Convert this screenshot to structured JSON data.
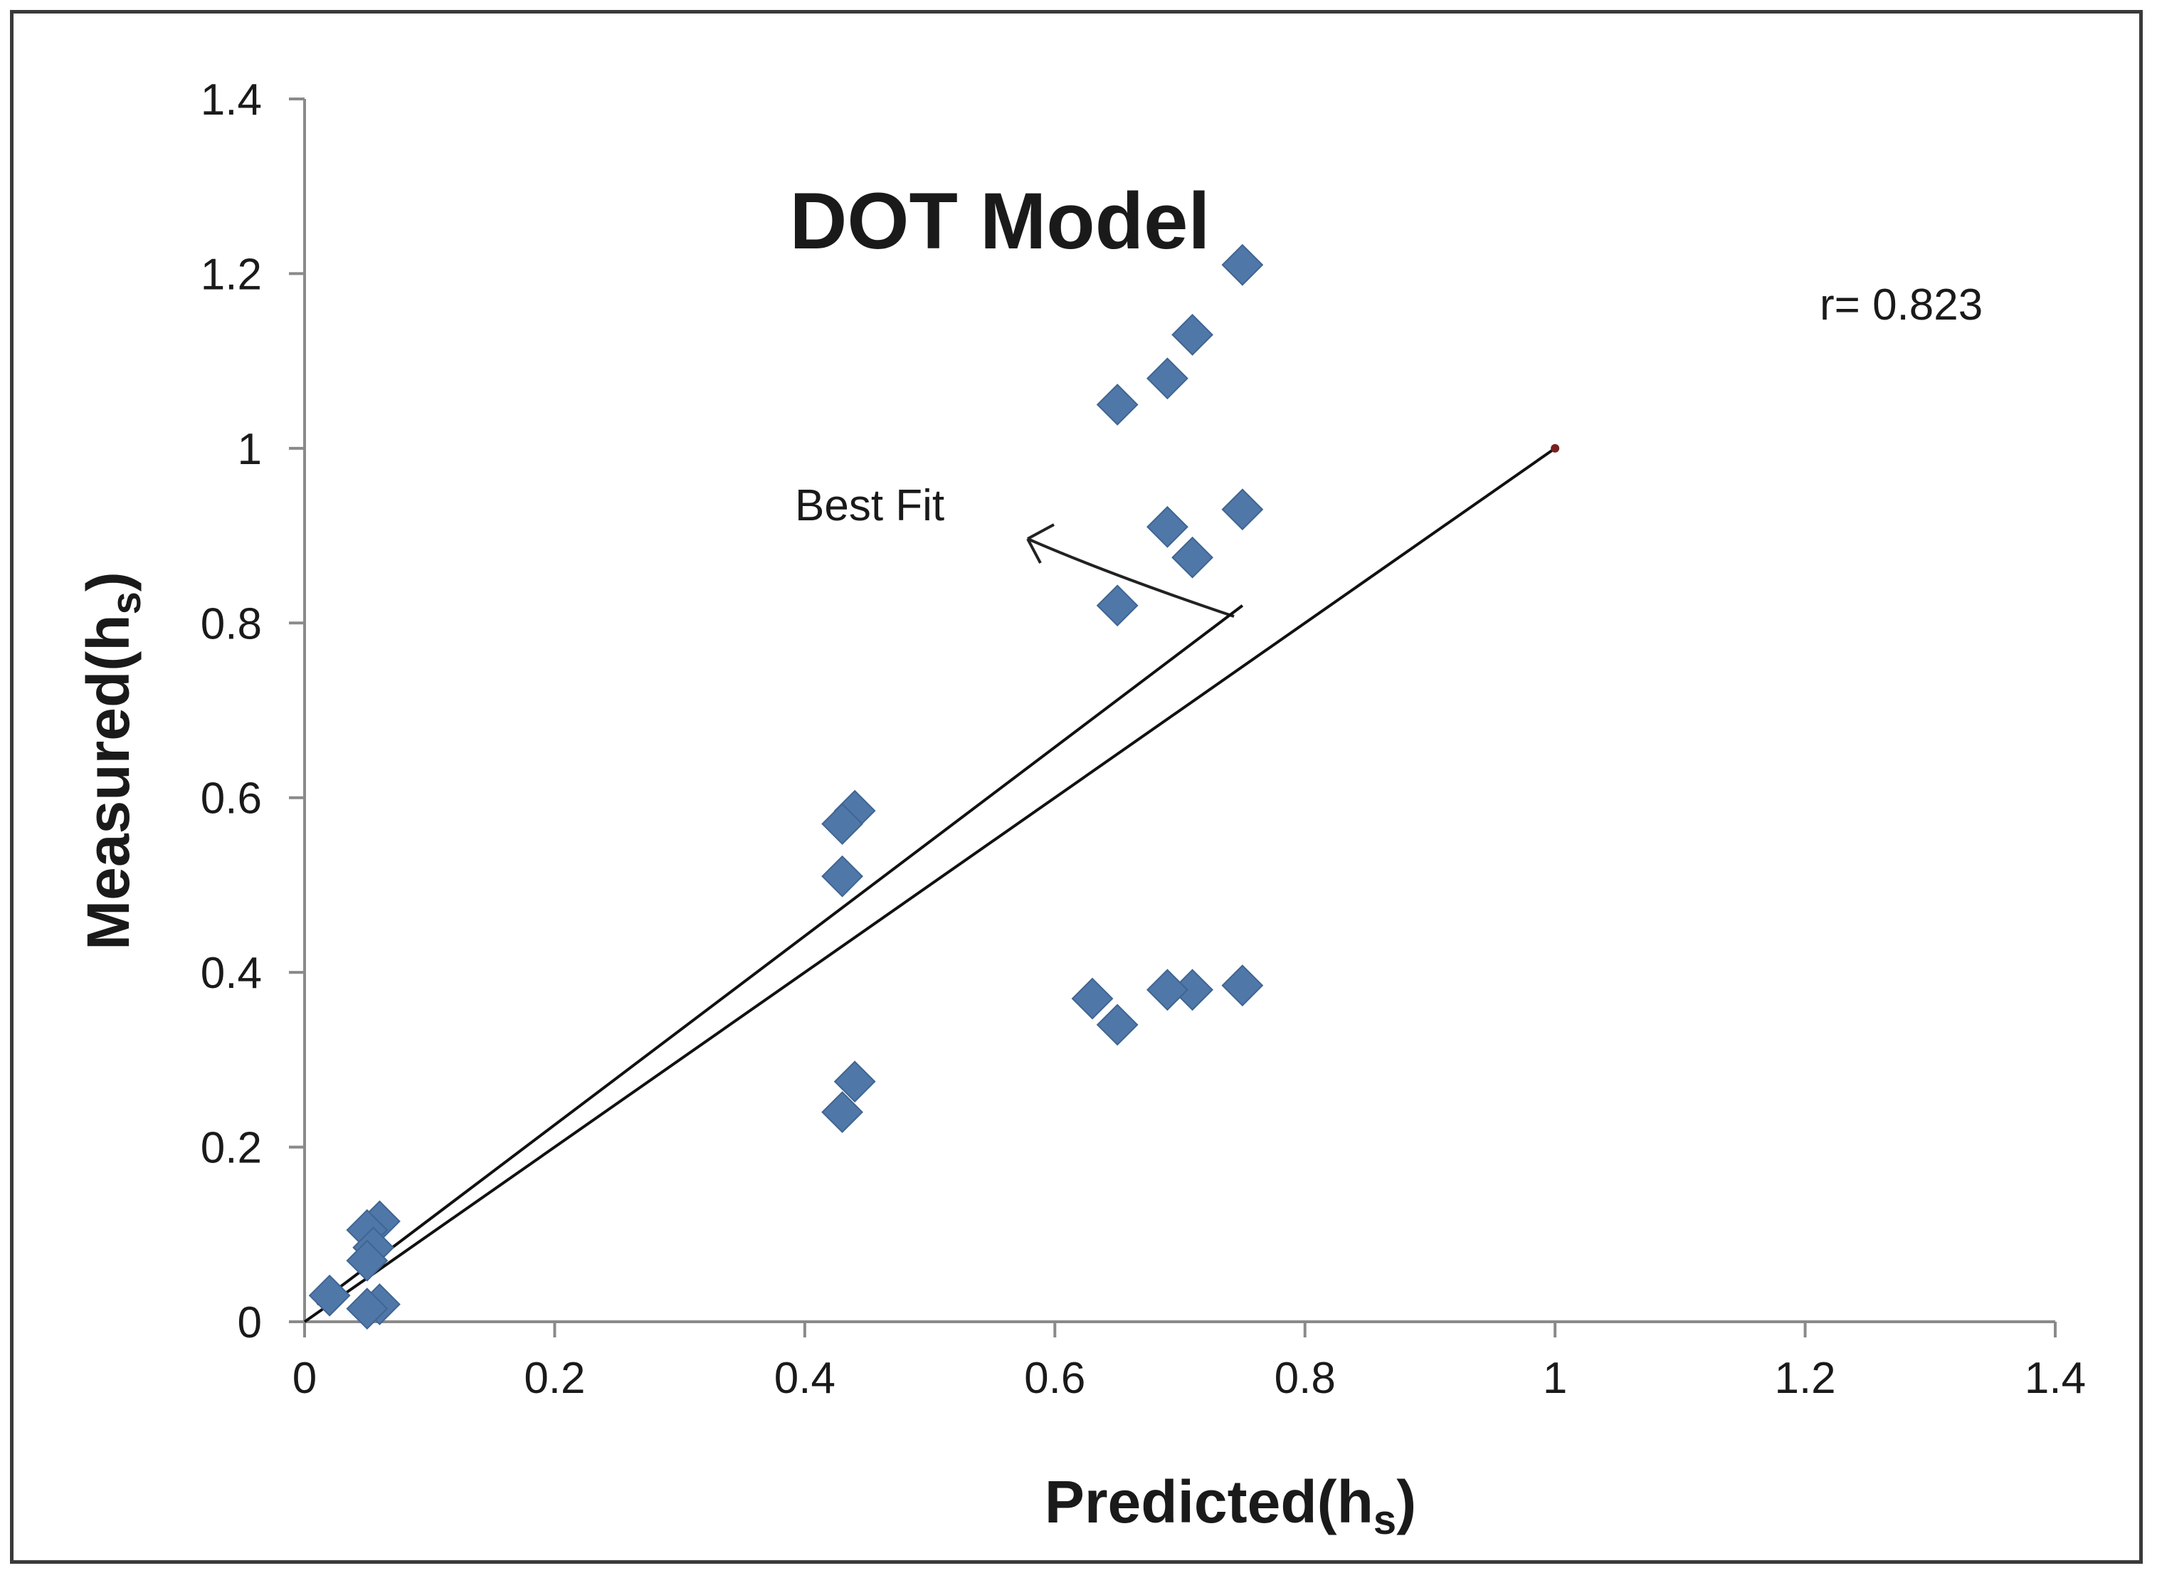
{
  "chart_data": {
    "type": "scatter",
    "title": "DOT Model",
    "xlabel": "Predicted(h",
    "xlabel_sub": "s",
    "xlabel_close": ")",
    "ylabel": "Measured(h",
    "ylabel_sub": "s",
    "ylabel_close": ")",
    "xlim": [
      0,
      1.4
    ],
    "ylim": [
      0,
      1.4
    ],
    "x_ticks": [
      "0",
      "0.2",
      "0.4",
      "0.6",
      "0.8",
      "1",
      "1.2",
      "1.4"
    ],
    "y_ticks": [
      "0",
      "0.2",
      "0.4",
      "0.6",
      "0.8",
      "1",
      "1.2",
      "1.4"
    ],
    "grid": false,
    "annotations": {
      "r_value": "r= 0.823",
      "best_fit_label": "Best Fit"
    },
    "lines": [
      {
        "kind": "best-fit",
        "points": [
          [
            0.01,
            0.02
          ],
          [
            0.75,
            0.82
          ]
        ]
      },
      {
        "kind": "line-of-equality",
        "points": [
          [
            0.0,
            0.0
          ],
          [
            1.0,
            1.0
          ]
        ]
      }
    ],
    "points": [
      [
        0.75,
        1.21
      ],
      [
        0.71,
        1.13
      ],
      [
        0.69,
        1.08
      ],
      [
        0.65,
        1.05
      ],
      [
        0.75,
        0.93
      ],
      [
        0.69,
        0.91
      ],
      [
        0.71,
        0.875
      ],
      [
        0.65,
        0.82
      ],
      [
        0.44,
        0.585
      ],
      [
        0.43,
        0.57
      ],
      [
        0.43,
        0.51
      ],
      [
        0.75,
        0.385
      ],
      [
        0.71,
        0.38
      ],
      [
        0.69,
        0.38
      ],
      [
        0.63,
        0.37
      ],
      [
        0.65,
        0.34
      ],
      [
        0.44,
        0.275
      ],
      [
        0.43,
        0.24
      ],
      [
        0.06,
        0.115
      ],
      [
        0.05,
        0.105
      ],
      [
        0.055,
        0.085
      ],
      [
        0.05,
        0.07
      ],
      [
        0.02,
        0.03
      ],
      [
        0.06,
        0.02
      ],
      [
        0.05,
        0.015
      ]
    ],
    "colors": {
      "marker": "#4f77a8",
      "line": "#111111",
      "axis": "#8a8a8a"
    }
  }
}
